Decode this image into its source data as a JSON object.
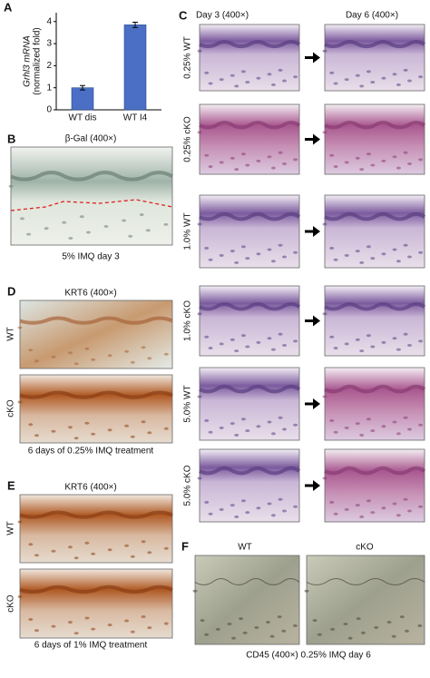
{
  "chart_data": {
    "type": "bar",
    "panel": "A",
    "ylabel": [
      "Grhl3 mRNA",
      "(normalized fold)"
    ],
    "categories": [
      "WT dis",
      "WT I4"
    ],
    "values": [
      1.0,
      3.85
    ],
    "errors": [
      0.1,
      0.12
    ],
    "color": "#4a6fc4",
    "ylim": [
      0,
      4.4
    ],
    "yticks": [
      0,
      1,
      2,
      3,
      4
    ]
  },
  "panel_b": {
    "letter": "B",
    "title": "β-Gal (400×)",
    "caption": "5% IMQ day 3"
  },
  "panel_c": {
    "letter": "C",
    "columns": [
      "Day 3 (400×)",
      "Day 6 (400×)"
    ],
    "rows": [
      "0.25% WT",
      "0.25% cKO",
      "1.0% WT",
      "1.0% cKO",
      "5.0% WT",
      "5.0% cKO"
    ]
  },
  "panel_d": {
    "letter": "D",
    "title": "KRT6 (400×)",
    "rows": [
      "WT",
      "cKO"
    ],
    "caption": "6 days of 0.25% IMQ treatment"
  },
  "panel_e": {
    "letter": "E",
    "title": "KRT6 (400×)",
    "rows": [
      "WT",
      "cKO"
    ],
    "caption": "6 days of 1% IMQ treatment"
  },
  "panel_f": {
    "letter": "F",
    "columns": [
      "WT",
      "cKO"
    ],
    "caption": "CD45 (400×) 0.25% IMQ day 6"
  }
}
